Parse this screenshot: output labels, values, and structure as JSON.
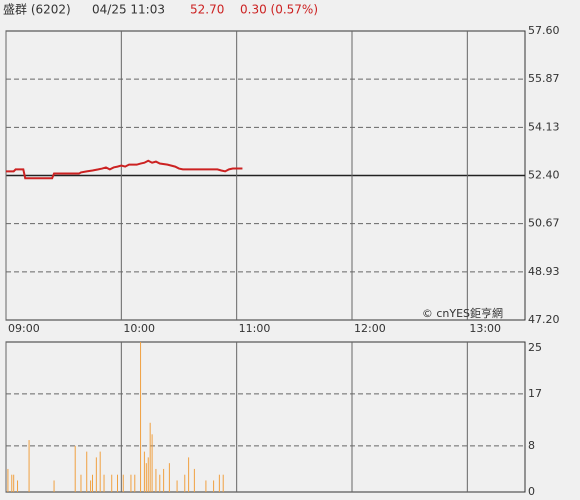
{
  "header": {
    "name": "盛群 (6202)",
    "time": "04/25 11:03",
    "price": "52.70",
    "change": "0.30 (0.57%)"
  },
  "chart_data": [
    {
      "type": "line",
      "credit": "© cnYES鉅亨網",
      "xlim": [
        0,
        270
      ],
      "xticks": [
        {
          "value": 0,
          "label": "09:00"
        },
        {
          "value": 60,
          "label": "10:00"
        },
        {
          "value": 120,
          "label": "11:00"
        },
        {
          "value": 180,
          "label": "12:00"
        },
        {
          "value": 240,
          "label": "13:00"
        }
      ],
      "ylim": [
        47.2,
        57.6
      ],
      "yticks": [
        {
          "value": 57.6,
          "label": "57.60"
        },
        55.87,
        54.13,
        {
          "value": 52.4,
          "label": "52.40"
        },
        50.67,
        48.93,
        {
          "value": 47.2,
          "label": "47.20"
        }
      ],
      "reference": 52.4,
      "color": "#cc2222",
      "x": [
        0,
        4,
        5,
        9,
        10,
        24,
        25,
        38,
        39,
        42,
        45,
        48,
        50,
        52,
        54,
        56,
        58,
        60,
        62,
        64,
        68,
        70,
        72,
        74,
        76,
        78,
        80,
        84,
        88,
        90,
        92,
        110,
        112,
        114,
        116,
        118,
        123
      ],
      "values": [
        52.55,
        52.55,
        52.62,
        52.62,
        52.3,
        52.3,
        52.47,
        52.47,
        52.51,
        52.55,
        52.58,
        52.62,
        52.65,
        52.69,
        52.62,
        52.69,
        52.72,
        52.76,
        52.72,
        52.79,
        52.79,
        52.83,
        52.86,
        52.93,
        52.86,
        52.9,
        52.83,
        52.79,
        52.72,
        52.65,
        52.62,
        52.62,
        52.58,
        52.55,
        52.62,
        52.65,
        52.65
      ]
    },
    {
      "type": "bar",
      "xlim": [
        0,
        270
      ],
      "ylim": [
        0,
        26
      ],
      "yticks": [
        25,
        17,
        8,
        0
      ],
      "color": "#f0a040",
      "x": [
        1,
        3,
        4,
        6,
        12,
        25,
        36,
        39,
        42,
        44,
        45,
        47,
        49,
        51,
        55,
        58,
        61,
        65,
        67,
        70,
        72,
        73,
        74,
        75,
        76,
        78,
        80,
        82,
        85,
        89,
        93,
        95,
        98,
        104,
        108,
        111,
        113
      ],
      "values": [
        4,
        3,
        3,
        2,
        9,
        2,
        8,
        3,
        7,
        2,
        3,
        6,
        7,
        3,
        3,
        3,
        3,
        3,
        3,
        26,
        7,
        5,
        6,
        12,
        10,
        4,
        3,
        4,
        5,
        2,
        3,
        6,
        4,
        2,
        2,
        3,
        3
      ]
    }
  ]
}
